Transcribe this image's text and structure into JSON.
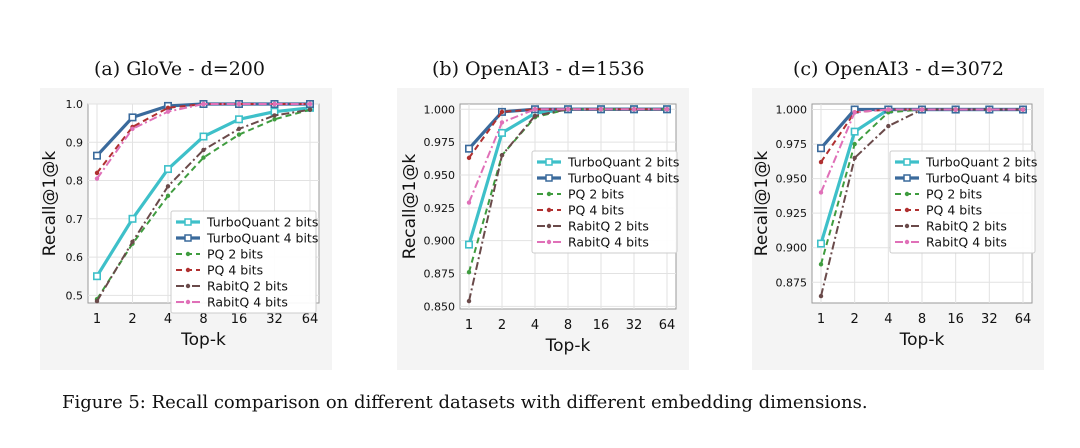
{
  "caption": "Figure 5: Recall comparison on different datasets with different embedding dimensions.",
  "styles": {
    "TurboQuant 2 bits": {
      "color": "#3ec0c9",
      "dash": "",
      "marker": "square",
      "width": 3.2
    },
    "TurboQuant 4 bits": {
      "color": "#3a6a9c",
      "dash": "",
      "marker": "square",
      "width": 3.2
    },
    "PQ 2 bits": {
      "color": "#3f9c3f",
      "dash": "6,4",
      "marker": "dot",
      "width": 2
    },
    "PQ 4 bits": {
      "color": "#b03030",
      "dash": "6,4",
      "marker": "dot",
      "width": 2
    },
    "RabitQ 2 bits": {
      "color": "#6a4a4a",
      "dash": "8,3,2,3",
      "marker": "dot",
      "width": 2
    },
    "RabitQ 4 bits": {
      "color": "#e070b8",
      "dash": "8,3,2,3",
      "marker": "dot",
      "width": 2
    }
  },
  "chart_data": [
    {
      "type": "line",
      "title": "(a) GloVe - d=200",
      "xlabel": "Top-k",
      "ylabel": "Recall@1@k",
      "categories": [
        "1",
        "2",
        "4",
        "8",
        "16",
        "32",
        "64"
      ],
      "ylim": [
        0.48,
        1.0
      ],
      "yticks": [
        "0.5",
        "0.6",
        "0.7",
        "0.8",
        "0.9",
        "1.0"
      ],
      "legend": "bottom-right",
      "series": [
        {
          "name": "TurboQuant 2 bits",
          "values": [
            0.55,
            0.7,
            0.83,
            0.915,
            0.96,
            0.98,
            0.99
          ]
        },
        {
          "name": "TurboQuant 4 bits",
          "values": [
            0.865,
            0.965,
            0.995,
            1.0,
            1.0,
            1.0,
            1.0
          ]
        },
        {
          "name": "PQ 2 bits",
          "values": [
            0.49,
            0.635,
            0.76,
            0.86,
            0.92,
            0.96,
            0.985
          ]
        },
        {
          "name": "PQ 4 bits",
          "values": [
            0.82,
            0.94,
            0.99,
            1.0,
            1.0,
            1.0,
            1.0
          ]
        },
        {
          "name": "RabitQ 2 bits",
          "values": [
            0.485,
            0.64,
            0.785,
            0.88,
            0.935,
            0.97,
            0.985
          ]
        },
        {
          "name": "RabitQ 4 bits",
          "values": [
            0.805,
            0.935,
            0.98,
            1.0,
            1.0,
            1.0,
            1.0
          ]
        }
      ]
    },
    {
      "type": "line",
      "title": "(b) OpenAI3 - d=1536",
      "xlabel": "Top-k",
      "ylabel": "Recall@1@k",
      "categories": [
        "1",
        "2",
        "4",
        "8",
        "16",
        "32",
        "64"
      ],
      "ylim": [
        0.848,
        1.004
      ],
      "yticks": [
        "0.850",
        "0.875",
        "0.900",
        "0.925",
        "0.950",
        "0.975",
        "1.000"
      ],
      "legend": "center-right",
      "series": [
        {
          "name": "TurboQuant 2 bits",
          "values": [
            0.897,
            0.982,
            0.997,
            1.0,
            1.0,
            1.0,
            1.0
          ]
        },
        {
          "name": "TurboQuant 4 bits",
          "values": [
            0.97,
            0.998,
            1.0,
            1.0,
            1.0,
            1.0,
            1.0
          ]
        },
        {
          "name": "PQ 2 bits",
          "values": [
            0.876,
            0.965,
            0.994,
            1.0,
            1.0,
            1.0,
            1.0
          ]
        },
        {
          "name": "PQ 4 bits",
          "values": [
            0.963,
            0.998,
            1.0,
            1.0,
            1.0,
            1.0,
            1.0
          ]
        },
        {
          "name": "RabitQ 2 bits",
          "values": [
            0.854,
            0.965,
            0.995,
            1.0,
            1.0,
            1.0,
            1.0
          ]
        },
        {
          "name": "RabitQ 4 bits",
          "values": [
            0.929,
            0.99,
            1.0,
            1.0,
            1.0,
            1.0,
            1.0
          ]
        }
      ]
    },
    {
      "type": "line",
      "title": "(c) OpenAI3 - d=3072",
      "xlabel": "Top-k",
      "ylabel": "Recall@1@k",
      "categories": [
        "1",
        "2",
        "4",
        "8",
        "16",
        "32",
        "64"
      ],
      "ylim": [
        0.86,
        1.004
      ],
      "yticks": [
        "0.875",
        "0.900",
        "0.925",
        "0.950",
        "0.975",
        "1.000"
      ],
      "legend": "center-right",
      "series": [
        {
          "name": "TurboQuant 2 bits",
          "values": [
            0.903,
            0.984,
            1.0,
            1.0,
            1.0,
            1.0,
            1.0
          ]
        },
        {
          "name": "TurboQuant 4 bits",
          "values": [
            0.972,
            1.0,
            1.0,
            1.0,
            1.0,
            1.0,
            1.0
          ]
        },
        {
          "name": "PQ 2 bits",
          "values": [
            0.888,
            0.975,
            0.998,
            1.0,
            1.0,
            1.0,
            1.0
          ]
        },
        {
          "name": "PQ 4 bits",
          "values": [
            0.962,
            0.998,
            1.0,
            1.0,
            1.0,
            1.0,
            1.0
          ]
        },
        {
          "name": "RabitQ 2 bits",
          "values": [
            0.865,
            0.965,
            0.988,
            1.0,
            1.0,
            1.0,
            1.0
          ]
        },
        {
          "name": "RabitQ 4 bits",
          "values": [
            0.94,
            0.998,
            1.0,
            1.0,
            1.0,
            1.0,
            1.0
          ]
        }
      ]
    }
  ]
}
